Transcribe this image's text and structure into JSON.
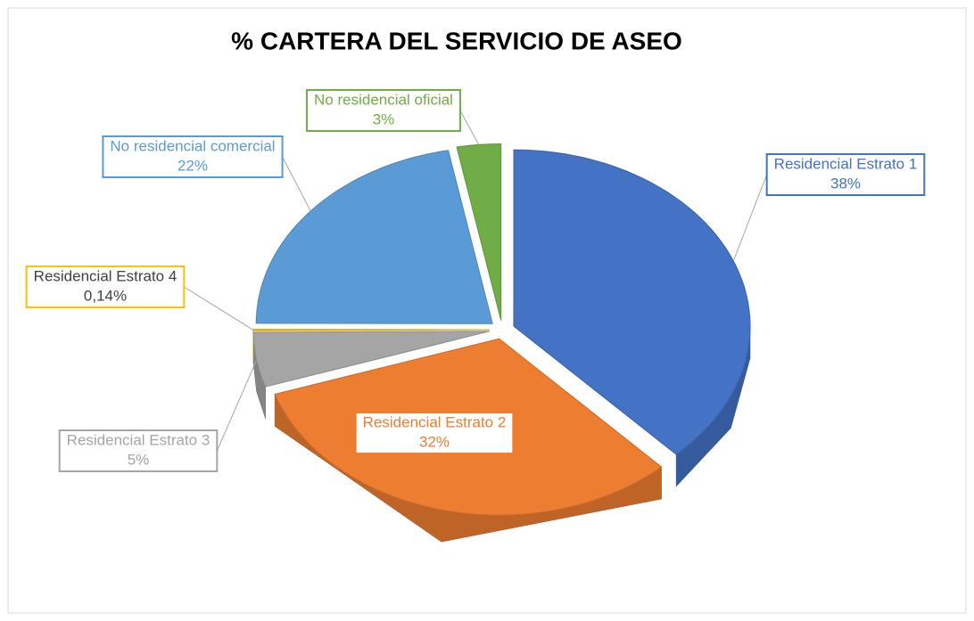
{
  "chart_data": {
    "type": "pie",
    "title": "% CARTERA DEL SERVICIO DE ASEO",
    "categories": [
      "Residencial Estrato 1",
      "Residencial Estrato 2",
      "Residencial Estrato 3",
      "Residencial Estrato 4",
      "No residencial comercial",
      "No residencial oficial"
    ],
    "values": [
      38,
      32,
      5,
      0.14,
      22,
      3
    ],
    "value_labels": [
      "38%",
      "32%",
      "5%",
      "0,14%",
      "22%",
      "3%"
    ],
    "colors": [
      "#4472c4",
      "#ed7d31",
      "#a5a5a5",
      "#ffc000",
      "#5b9bd5",
      "#70ad47"
    ]
  }
}
